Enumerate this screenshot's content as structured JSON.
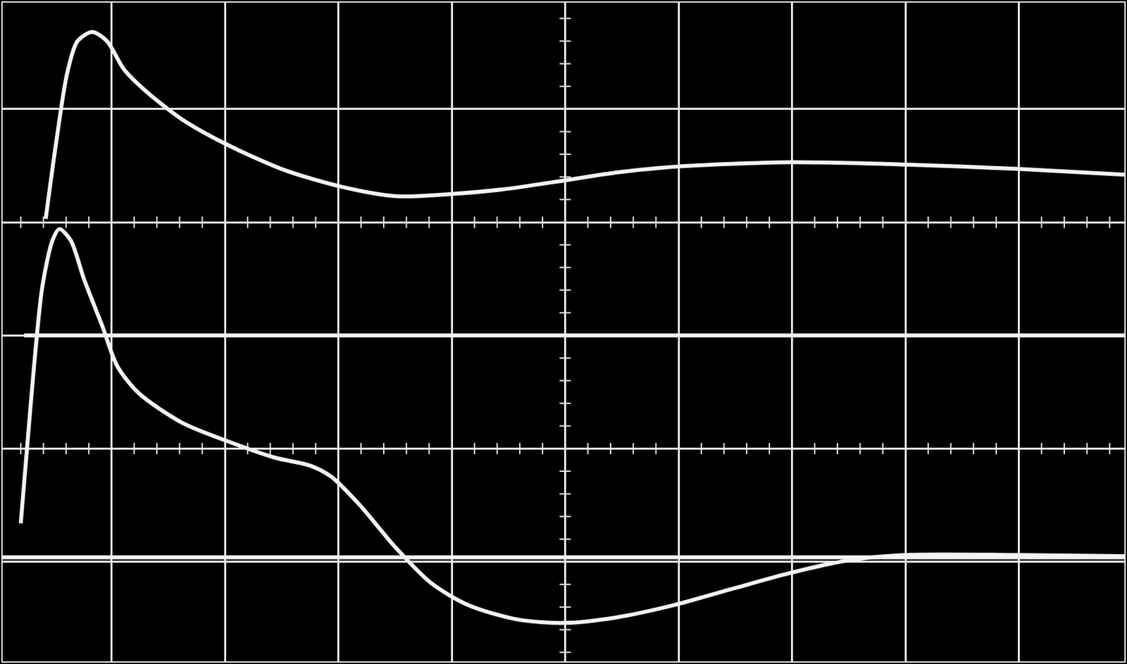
{
  "chart_data": {
    "type": "line",
    "color": "#f2f2f2",
    "grid": true,
    "tick_labels": false,
    "xlim": [
      0.04,
      9.93
    ],
    "ylim": [
      0.12,
      5.94
    ],
    "xticks": [
      1,
      2,
      3,
      4,
      5,
      6,
      7,
      8,
      9
    ],
    "yticks": [
      1,
      2,
      3,
      4,
      5
    ],
    "series": [
      {
        "x": [
          0.42,
          0.51,
          0.61,
          0.7,
          0.83,
          0.96,
          1.11,
          1.3,
          1.62,
          2.01,
          2.5,
          3.0,
          3.51,
          4.0,
          4.45,
          5.0,
          5.46,
          5.97,
          6.98,
          7.99,
          9.0,
          9.93
        ],
        "values": [
          4.03,
          4.69,
          5.32,
          5.6,
          5.68,
          5.6,
          5.35,
          5.16,
          4.91,
          4.69,
          4.47,
          4.32,
          4.23,
          4.25,
          4.29,
          4.37,
          4.44,
          4.49,
          4.53,
          4.51,
          4.47,
          4.42
        ]
      },
      {
        "x": [
          0.2,
          0.29,
          0.39,
          0.48,
          0.54,
          0.64,
          0.76,
          0.92,
          1.05,
          1.24,
          1.62,
          2.01,
          2.44,
          2.75,
          2.94,
          3.19,
          3.51,
          3.82,
          4.14,
          4.58,
          5.0,
          5.46,
          5.97,
          6.47,
          6.98,
          7.48,
          7.99,
          9.0,
          9.93
        ],
        "values": [
          1.34,
          2.42,
          3.43,
          3.84,
          3.94,
          3.84,
          3.49,
          3.08,
          2.73,
          2.49,
          2.23,
          2.07,
          1.92,
          1.85,
          1.75,
          1.5,
          1.12,
          0.81,
          0.62,
          0.49,
          0.46,
          0.51,
          0.62,
          0.76,
          0.9,
          1.01,
          1.06,
          1.06,
          1.05
        ]
      },
      {
        "x": [
          0.23,
          9.93
        ],
        "values": [
          3.0,
          3.0
        ]
      },
      {
        "x": [
          0.04,
          9.93
        ],
        "values": [
          1.04,
          1.04
        ]
      }
    ]
  }
}
